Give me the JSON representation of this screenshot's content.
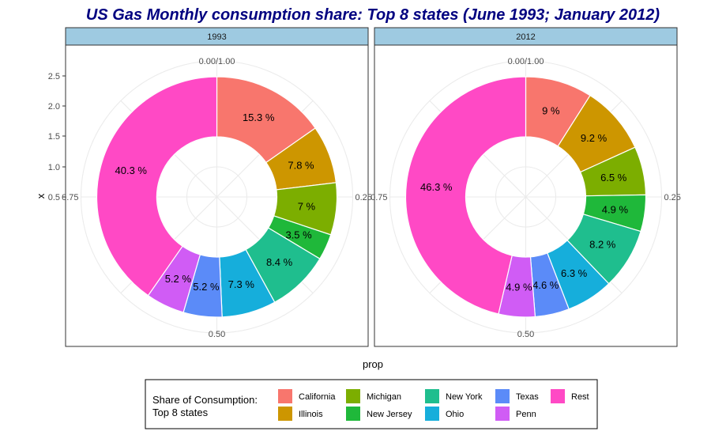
{
  "chart_data": {
    "type": "pie",
    "title": "US Gas Monthly consumption share: Top 8 states (June 1993; January 2012)",
    "xlabel": "prop",
    "ylabel": "x",
    "y_ticks": [
      "0.5",
      "1.0",
      "1.5",
      "2.0",
      "2.5"
    ],
    "angle_ticks": [
      "0.00/1.00",
      "0.25",
      "0.50",
      "0.75"
    ],
    "categories": [
      "California",
      "Illinois",
      "Michigan",
      "New Jersey",
      "New York",
      "Ohio",
      "Texas",
      "Penn",
      "Rest"
    ],
    "colors": [
      "#F8766D",
      "#CD9600",
      "#7CAE00",
      "#1FB83A",
      "#1FBE8E",
      "#16AEDB",
      "#5B8BF8",
      "#D05CF5",
      "#FF49C5"
    ],
    "legend": {
      "title_line1": "Share of Consumption:",
      "title_line2": "Top 8 states",
      "position": "bottom",
      "items": [
        "California",
        "Illinois",
        "Michigan",
        "New Jersey",
        "New York",
        "Ohio",
        "Texas",
        "Penn",
        "Rest"
      ]
    },
    "panels": [
      {
        "strip": "1993",
        "values": [
          15.3,
          7.8,
          7.0,
          3.5,
          8.4,
          7.3,
          5.2,
          5.2,
          40.3
        ],
        "labels": [
          "15.3 %",
          "7.8 %",
          "7 %",
          "3.5 %",
          "8.4 %",
          "7.3 %",
          "5.2 %",
          "5.2 %",
          "40.3 %"
        ]
      },
      {
        "strip": "2012",
        "values": [
          9.0,
          9.2,
          6.5,
          4.9,
          8.2,
          6.3,
          4.6,
          4.9,
          46.3
        ],
        "labels": [
          "9 %",
          "9.2 %",
          "6.5 %",
          "4.9 %",
          "8.2 %",
          "6.3 %",
          "4.6 %",
          "4.9 %",
          "46.3 %"
        ]
      }
    ]
  }
}
